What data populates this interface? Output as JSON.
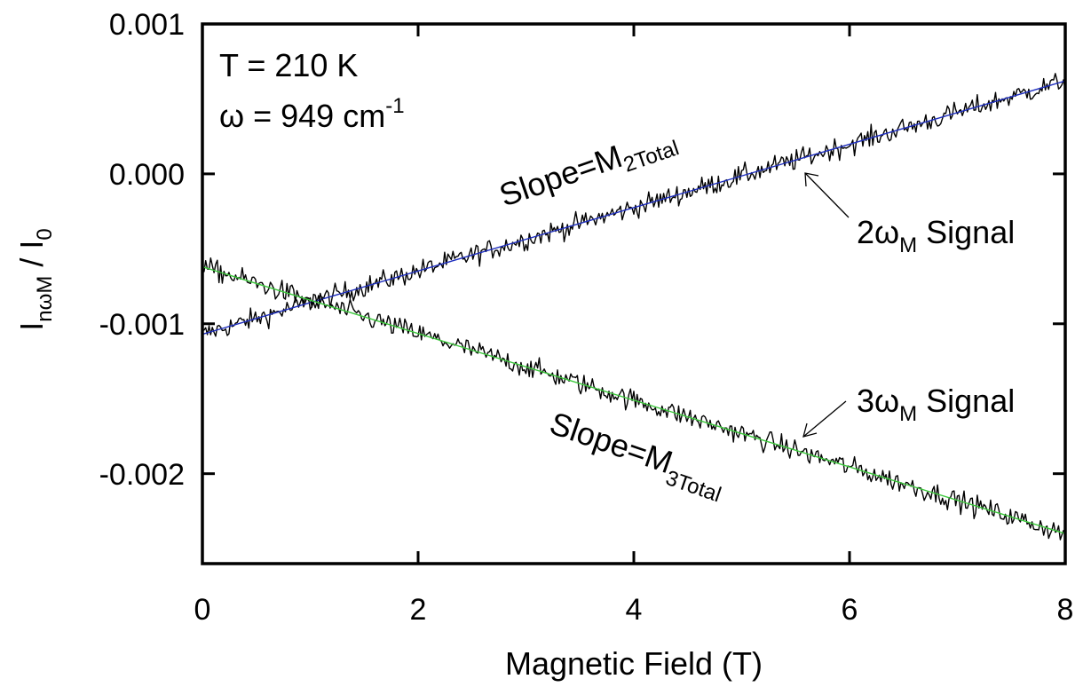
{
  "chart_data": {
    "type": "line",
    "xlabel": "Magnetic Field (T)",
    "ylabel": {
      "main": "I",
      "sub": "nωM",
      "rest": " / I",
      "sub2": "0"
    },
    "xlim": [
      0,
      8
    ],
    "ylim": [
      -0.0026,
      0.001
    ],
    "xticks": [
      0,
      2,
      4,
      6,
      8
    ],
    "xtick_labels": [
      "0",
      "2",
      "4",
      "6",
      "8"
    ],
    "yticks": [
      0.001,
      0.0,
      -0.001,
      -0.002
    ],
    "ytick_labels": [
      "0.001",
      "0.000",
      "-0.001",
      "-0.002"
    ],
    "grid": false,
    "conditions": {
      "temperature": "T = 210 K",
      "omega_main": "ω = 949 cm",
      "omega_sup": "-1"
    },
    "annotations": {
      "signal2_num": "2ω",
      "signal2_sub": "M",
      "signal2_rest": " Signal",
      "signal3_num": "3ω",
      "signal3_sub": "M",
      "signal3_rest": " Signal",
      "slope2_main": "Slope=M",
      "slope2_sub": "2Total",
      "slope3_main": "Slope=M",
      "slope3_sub": "3Total"
    },
    "series": [
      {
        "signal": "2ωM",
        "color": "#000000",
        "fit_color": "#1f2fbf",
        "fit": {
          "x": [
            0,
            8
          ],
          "y": [
            -0.00107,
            0.00062
          ]
        },
        "noise": 3.5e-05,
        "n_points": 520
      },
      {
        "signal": "3ωM",
        "color": "#000000",
        "fit_color": "#3cc83c",
        "fit": {
          "x": [
            0,
            8
          ],
          "y": [
            -0.00062,
            -0.0024
          ]
        },
        "noise": 3.5e-05,
        "n_points": 520
      }
    ]
  }
}
